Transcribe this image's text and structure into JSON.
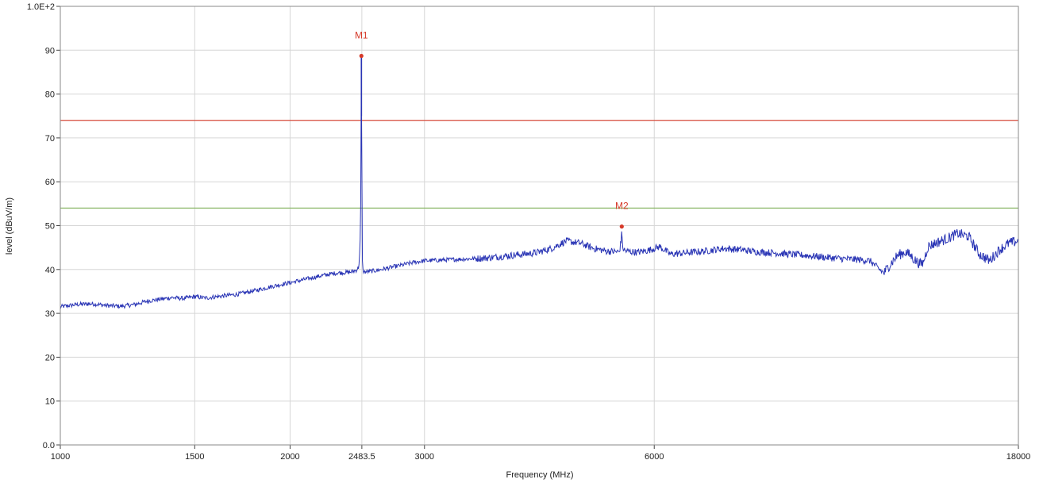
{
  "chart_data": {
    "type": "line",
    "xlabel": "Frequency (MHz)",
    "ylabel": "level (dBuV/m)",
    "x_scale": "log",
    "xlim": [
      1000,
      18000
    ],
    "ylim": [
      0,
      100
    ],
    "grid": true,
    "x_ticks": [
      {
        "value": 1000,
        "label": "1000"
      },
      {
        "value": 1500,
        "label": "1500"
      },
      {
        "value": 2000,
        "label": "2000"
      },
      {
        "value": 2483.5,
        "label": "2483.5"
      },
      {
        "value": 3000,
        "label": "3000"
      },
      {
        "value": 6000,
        "label": "6000"
      },
      {
        "value": 18000,
        "label": "18000"
      }
    ],
    "y_ticks": [
      {
        "value": 0,
        "label": "0.0"
      },
      {
        "value": 10,
        "label": "10"
      },
      {
        "value": 20,
        "label": "20"
      },
      {
        "value": 30,
        "label": "30"
      },
      {
        "value": 40,
        "label": "40"
      },
      {
        "value": 50,
        "label": "50"
      },
      {
        "value": 60,
        "label": "60"
      },
      {
        "value": 70,
        "label": "70"
      },
      {
        "value": 80,
        "label": "80"
      },
      {
        "value": 90,
        "label": "90"
      },
      {
        "value": 100,
        "label": "1.0E+2"
      }
    ],
    "limit_lines": [
      {
        "value": 74,
        "color": "#d64a3a"
      },
      {
        "value": 54,
        "color": "#8cb86a"
      }
    ],
    "markers": [
      {
        "label": "M1",
        "x": 2480,
        "y": 88.7
      },
      {
        "label": "M2",
        "x": 5440,
        "y": 49.8
      }
    ],
    "series": [
      {
        "color": "#2a35b5",
        "x": [
          1000,
          1050,
          1100,
          1150,
          1200,
          1250,
          1300,
          1350,
          1400,
          1450,
          1500,
          1550,
          1600,
          1700,
          1800,
          1900,
          2000,
          2100,
          2200,
          2300,
          2400,
          2440,
          2460,
          2470,
          2475,
          2478,
          2480,
          2482,
          2485,
          2490,
          2500,
          2600,
          2700,
          2800,
          2900,
          3000,
          3200,
          3400,
          3600,
          3800,
          4000,
          4200,
          4400,
          4600,
          4800,
          5000,
          5200,
          5400,
          5430,
          5440,
          5450,
          5500,
          5700,
          5900,
          6000,
          6100,
          6300,
          6600,
          7000,
          7400,
          7800,
          8200,
          8600,
          9000,
          9500,
          10000,
          10500,
          11000,
          11500,
          11800,
          12000,
          12200,
          12500,
          12800,
          13000,
          13200,
          13400,
          13500,
          13700,
          14000,
          14500,
          15000,
          15500,
          16000,
          16500,
          17000,
          17500,
          18000
        ],
        "y": [
          31.5,
          32.0,
          32.2,
          31.8,
          31.6,
          32.0,
          32.8,
          33.2,
          33.6,
          33.4,
          33.8,
          33.5,
          33.8,
          34.3,
          35.2,
          36.2,
          37.0,
          37.8,
          38.6,
          39.2,
          39.4,
          39.8,
          40.5,
          45.0,
          55.0,
          75.0,
          88.7,
          80.0,
          45.0,
          40.0,
          39.4,
          39.8,
          40.4,
          41.0,
          41.6,
          42.0,
          42.2,
          42.4,
          42.6,
          43.0,
          43.4,
          43.8,
          44.8,
          46.5,
          46.0,
          44.8,
          44.2,
          44.0,
          46.5,
          49.8,
          45.0,
          44.2,
          43.9,
          44.4,
          44.8,
          45.2,
          43.5,
          43.8,
          44.2,
          44.8,
          44.5,
          44.0,
          43.8,
          43.5,
          43.2,
          42.8,
          42.5,
          42.3,
          42.0,
          40.2,
          39.2,
          41.0,
          43.2,
          44.0,
          43.2,
          42.0,
          41.2,
          41.5,
          45.2,
          46.0,
          47.0,
          48.2,
          47.5,
          43.5,
          42.0,
          44.5,
          46.0,
          46.5
        ]
      }
    ]
  }
}
